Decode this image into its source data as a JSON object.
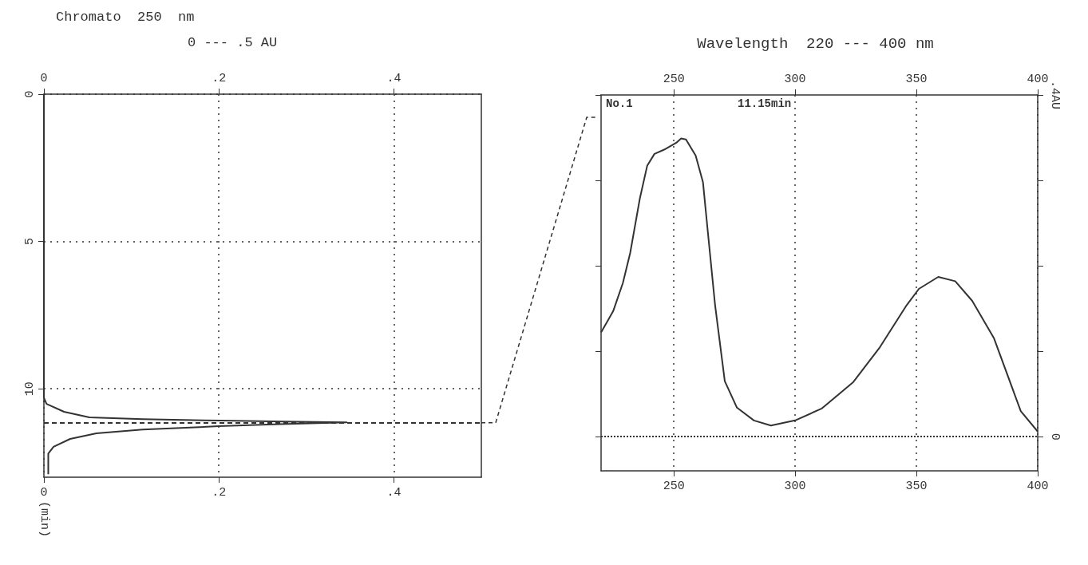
{
  "chart_data": [
    {
      "type": "line",
      "title": "Chromato  250  nm",
      "subtitle": "0 --- .5 AU",
      "ylabel": "(min)",
      "xlim": [
        0,
        0.5
      ],
      "xticks": [
        0,
        {
          "value": 0.2,
          "label": ".2"
        },
        {
          "value": 0.4,
          "label": ".4"
        }
      ],
      "x2lim": [
        0,
        0.5
      ],
      "x2ticks": [
        0,
        {
          "value": 0.2,
          "label": ".2"
        },
        {
          "value": 0.4,
          "label": ".4"
        }
      ],
      "ylim": [
        13,
        0
      ],
      "yticks": [
        0,
        5,
        10
      ],
      "grid": true,
      "ref_lines": [
        {
          "axis": "y",
          "value": 11.15,
          "line_style": "dashed"
        }
      ],
      "series": [
        {
          "color": "#333333",
          "x": [
            0,
            0,
            0.003,
            0.023,
            0.052,
            0.113,
            0.203,
            0.274,
            0.346,
            0.27,
            0.2,
            0.113,
            0.06,
            0.03,
            0.011,
            0.005,
            0.005
          ],
          "values": [
            0,
            10.3,
            10.51,
            10.78,
            10.97,
            11.03,
            11.08,
            11.11,
            11.14,
            11.2,
            11.27,
            11.38,
            11.51,
            11.7,
            11.97,
            12.2,
            12.9
          ]
        }
      ]
    },
    {
      "type": "line",
      "title": "Wavelength  220 --- 400 nm",
      "annotations": [
        "No.1",
        "11.15min"
      ],
      "xlim": [
        220,
        400
      ],
      "xticks": [
        250,
        300,
        350,
        400
      ],
      "x2lim": [
        220,
        400
      ],
      "x2ticks": [
        250,
        300,
        350,
        400
      ],
      "y2lim": [
        -0.04,
        0.4
      ],
      "y2ticks": [
        0,
        {
          "value": 0.1,
          "label": null
        },
        {
          "value": 0.2,
          "label": null
        },
        {
          "value": 0.3,
          "label": null
        },
        {
          "value": 0.4,
          "label": ".4AU"
        }
      ],
      "grid": "x",
      "ref_lines": [
        {
          "axis": "y2",
          "value": 0,
          "line_style": "dotted"
        }
      ],
      "series": [
        {
          "color": "#333333",
          "axis": "y2",
          "x": [
            220,
            225,
            229,
            232,
            236,
            239,
            242,
            246,
            251,
            253,
            255,
            259,
            262,
            264,
            267,
            271,
            276,
            283,
            290,
            300,
            311,
            324,
            335,
            346,
            351,
            359,
            366,
            373,
            382,
            393,
            400
          ],
          "values": [
            0.122,
            0.147,
            0.18,
            0.215,
            0.279,
            0.317,
            0.331,
            0.336,
            0.344,
            0.349,
            0.348,
            0.329,
            0.298,
            0.24,
            0.154,
            0.065,
            0.034,
            0.019,
            0.013,
            0.019,
            0.033,
            0.064,
            0.105,
            0.154,
            0.173,
            0.187,
            0.182,
            0.159,
            0.115,
            0.03,
            0.006
          ]
        }
      ]
    }
  ]
}
